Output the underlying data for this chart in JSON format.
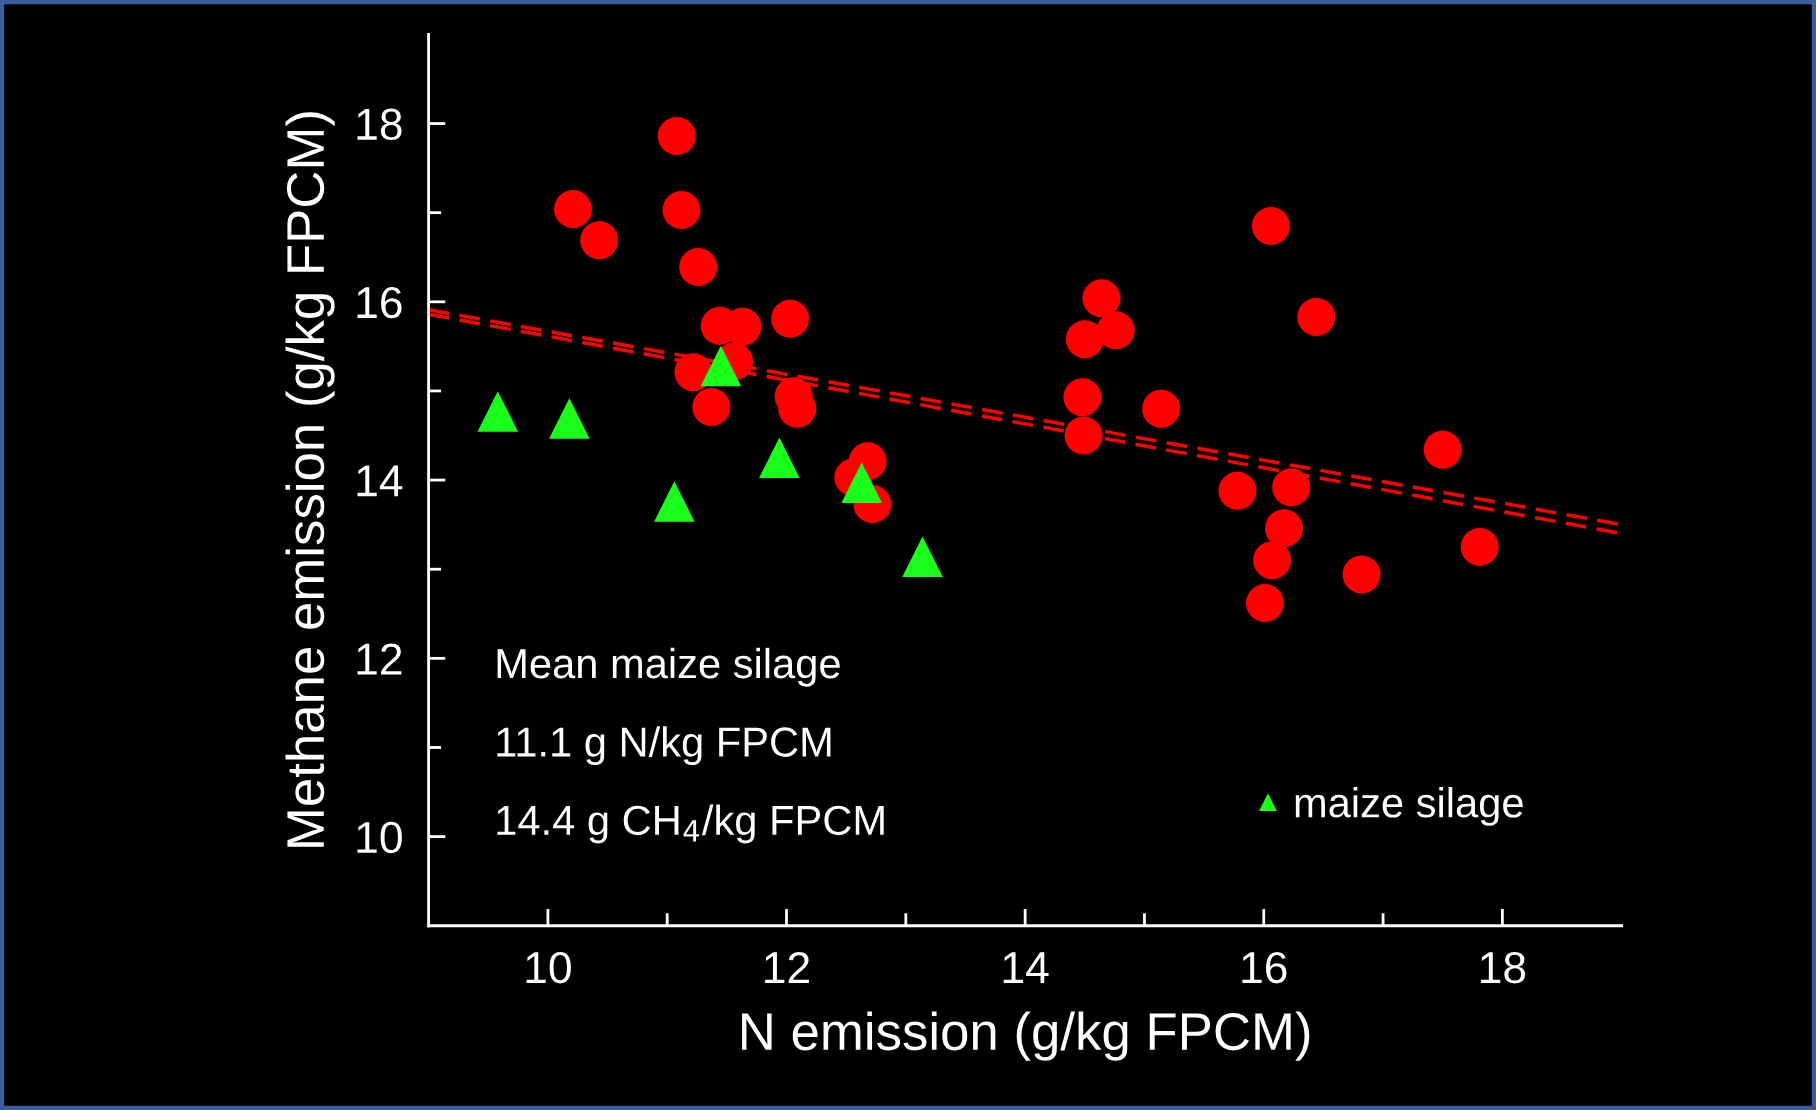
{
  "chart_data": {
    "type": "scatter",
    "xlabel": "N emission (g/kg FPCM)",
    "ylabel": "Methane emission (g/kg FPCM)",
    "series": [
      {
        "color": "#ff0000",
        "marker": "circle",
        "x": [
          11.08,
          10.21,
          10.43,
          11.12,
          11.26,
          11.44,
          11.63,
          12.03,
          11.56,
          11.22,
          11.37,
          12.06,
          12.09,
          12.56,
          12.68,
          12.72,
          14.64,
          14.5,
          14.76,
          14.48,
          14.49,
          15.14,
          16.06,
          16.44,
          15.78,
          16.23,
          16.17,
          16.07,
          16.01,
          16.82,
          17.5,
          17.81
        ],
        "values": [
          17.86,
          17.04,
          16.69,
          17.03,
          16.39,
          15.73,
          15.72,
          15.81,
          15.33,
          15.21,
          14.82,
          14.94,
          14.8,
          14.03,
          14.21,
          13.73,
          16.04,
          15.58,
          15.68,
          14.93,
          14.5,
          14.8,
          16.85,
          15.83,
          13.88,
          13.92,
          13.46,
          13.1,
          12.62,
          12.94,
          14.34,
          13.25
        ]
      },
      {
        "name": "maize silage",
        "color": "#1aff1a",
        "marker": "triangle",
        "x": [
          9.58,
          10.18,
          11.06,
          11.45,
          11.94,
          12.63,
          13.14
        ],
        "values": [
          14.77,
          14.69,
          13.76,
          15.28,
          14.25,
          13.97,
          13.14
        ]
      },
      {
        "type": "line",
        "color": "#ff0000",
        "line_style": "dashed",
        "marker": "none",
        "x": [
          9,
          19
        ],
        "values": [
          15.91,
          13.5
        ]
      },
      {
        "type": "line",
        "color": "#ff0000",
        "line_style": "dashed",
        "marker": "none",
        "x": [
          9,
          19
        ],
        "values": [
          15.86,
          13.4
        ]
      }
    ],
    "annotations": [
      "Mean maize silage",
      "11.1 g N/kg FPCM",
      "14.4 g CH$_{4}$/kg FPCM"
    ],
    "xlim": [
      9,
      19
    ],
    "ylim": [
      9,
      19
    ],
    "xticks": [
      10,
      {
        "value": 11,
        "label": null
      },
      12,
      {
        "value": 13,
        "label": null
      },
      14,
      {
        "value": 15,
        "label": null
      },
      16,
      {
        "value": 17,
        "label": null
      },
      18
    ],
    "yticks": [
      10,
      {
        "value": 11,
        "label": null
      },
      12,
      {
        "value": 13,
        "label": null
      },
      14,
      {
        "value": 15,
        "label": null
      },
      16,
      {
        "value": 17,
        "label": null
      },
      18
    ],
    "grid": false,
    "legend": "bottom right"
  }
}
